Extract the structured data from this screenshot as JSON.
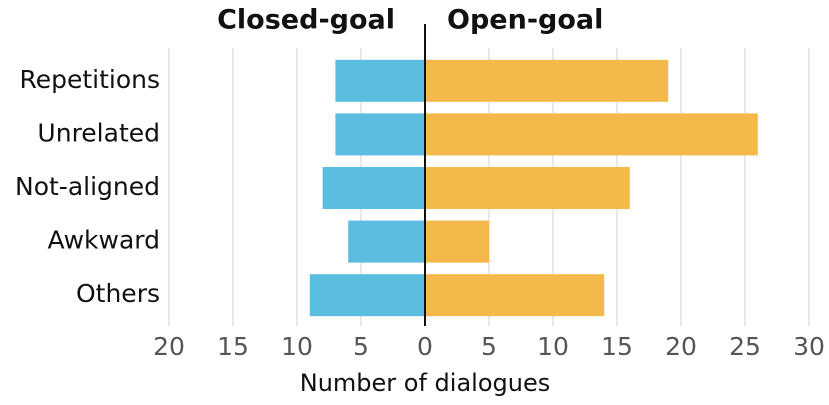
{
  "chart_data": {
    "type": "diverging-bar",
    "categories": [
      "Repetitions",
      "Unrelated",
      "Not-aligned",
      "Awkward",
      "Others"
    ],
    "series": [
      {
        "name": "Closed-goal",
        "color": "#5bbde0",
        "values": [
          -7,
          -7,
          -8,
          -6,
          -9
        ]
      },
      {
        "name": "Open-goal",
        "color": "#f5b94b",
        "values": [
          19,
          26,
          16,
          5,
          14
        ]
      }
    ],
    "xlabel": "Number of dialogues",
    "xlim": [
      -20,
      30
    ],
    "xticks": [
      {
        "value": -20,
        "label": "20"
      },
      {
        "value": -15,
        "label": "15"
      },
      {
        "value": -10,
        "label": "10"
      },
      {
        "value": -5,
        "label": "5"
      },
      0,
      5,
      10,
      15,
      20,
      25,
      30
    ],
    "grid": true
  }
}
